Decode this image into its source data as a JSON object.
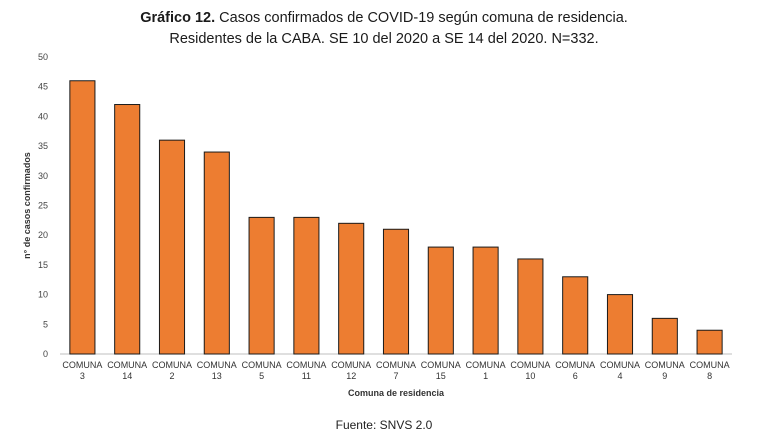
{
  "title": {
    "bold_part": "Gráfico 12.",
    "line1": "Casos confirmados de COVID-19 según comuna de residencia.",
    "line2": "Residentes de la CABA. SE 10 del 2020 a SE 14 del 2020. N=332."
  },
  "source": "Fuente: SNVS 2.0",
  "chart_data": {
    "type": "bar",
    "title": "Gráfico 12. Casos confirmados de COVID-19 según comuna de residencia. Residentes de la CABA. SE 10 del 2020 a SE 14 del 2020. N=332.",
    "xlabel": "Comuna de residencia",
    "ylabel": "n° de casos confirmados",
    "category_prefix": "COMUNA",
    "categories": [
      "3",
      "14",
      "2",
      "13",
      "5",
      "11",
      "12",
      "7",
      "15",
      "1",
      "10",
      "6",
      "4",
      "9",
      "8"
    ],
    "values": [
      46,
      42,
      36,
      34,
      23,
      23,
      22,
      21,
      18,
      18,
      16,
      13,
      10,
      6,
      4
    ],
    "ylim": [
      0,
      50
    ],
    "yticks": [
      0,
      5,
      10,
      15,
      20,
      25,
      30,
      35,
      40,
      45,
      50
    ],
    "bar_color": "#ED7D31",
    "bar_border_color": "#1a1a1a",
    "grid": false,
    "legend": "none"
  }
}
